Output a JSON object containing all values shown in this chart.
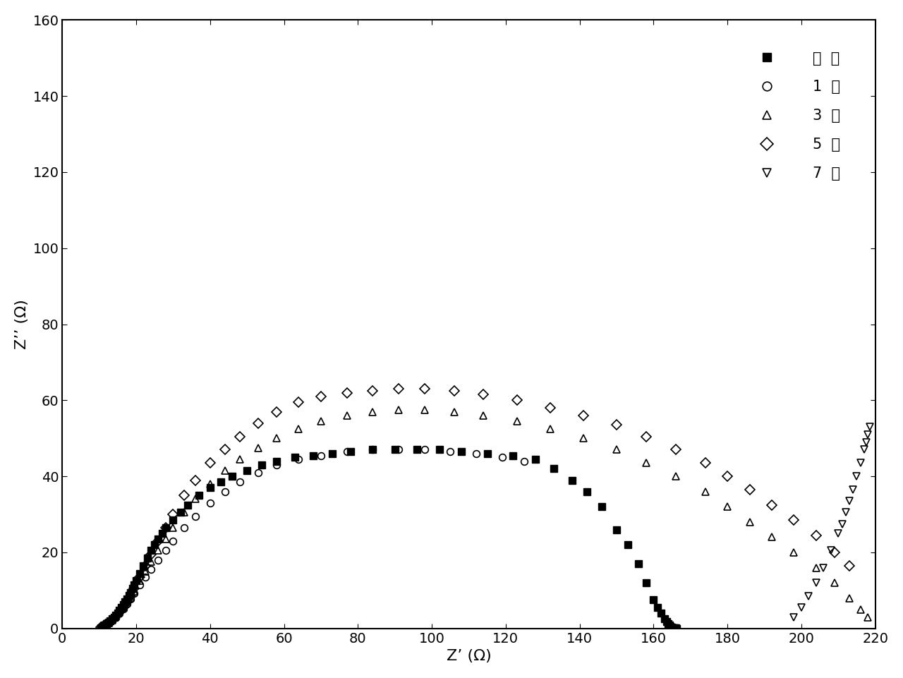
{
  "xlabel": "Z’ (Ω)",
  "ylabel": "Z’’ (Ω)",
  "xlim": [
    0,
    220
  ],
  "ylim": [
    0,
    160
  ],
  "xticks": [
    0,
    20,
    40,
    60,
    80,
    100,
    120,
    140,
    160,
    180,
    200,
    220
  ],
  "yticks": [
    0,
    20,
    40,
    60,
    80,
    100,
    120,
    140,
    160
  ],
  "legend_labels": [
    "起  始",
    "1  天",
    "3  天",
    "5  天",
    "7  天"
  ],
  "series_0": {
    "label": "起  始",
    "x": [
      10.5,
      11,
      11.5,
      12,
      12.5,
      13,
      13.5,
      14,
      14.5,
      15,
      15.5,
      16,
      16.5,
      17,
      17.5,
      18,
      18.5,
      19,
      19.5,
      20,
      21,
      22,
      23,
      24,
      25,
      26,
      27,
      28,
      30,
      32,
      34,
      37,
      40,
      43,
      46,
      50,
      54,
      58,
      63,
      68,
      73,
      78,
      84,
      90,
      96,
      102,
      108,
      115,
      122,
      128,
      133,
      138,
      142,
      146,
      150,
      153,
      156,
      158,
      160,
      161,
      162,
      163,
      163.5,
      164,
      164.3,
      164.6,
      164.9,
      165.2,
      165.5,
      165.8,
      166,
      166.3
    ],
    "y": [
      0.2,
      0.5,
      0.8,
      1.2,
      1.6,
      2.0,
      2.5,
      3.0,
      3.5,
      4.1,
      4.8,
      5.5,
      6.2,
      7.0,
      7.8,
      8.7,
      9.5,
      10.5,
      11.5,
      12.5,
      14.5,
      16.5,
      18.5,
      20.5,
      22.0,
      23.5,
      25.0,
      26.5,
      28.5,
      30.5,
      32.5,
      35.0,
      37.0,
      38.5,
      40.0,
      41.5,
      43.0,
      44.0,
      45.0,
      45.5,
      46.0,
      46.5,
      47.0,
      47.0,
      47.0,
      47.0,
      46.5,
      46.0,
      45.5,
      44.5,
      42.0,
      39.0,
      36.0,
      32.0,
      26.0,
      22.0,
      17.0,
      12.0,
      7.5,
      5.5,
      4.0,
      2.5,
      1.8,
      1.2,
      0.8,
      0.5,
      0.3,
      0.2,
      0.15,
      0.1,
      0.05,
      0.02
    ]
  },
  "series_1": {
    "label": "1  天",
    "x": [
      10.5,
      11.5,
      12.5,
      13.5,
      14.5,
      15.5,
      16.5,
      17.5,
      18.5,
      19.5,
      21,
      22.5,
      24,
      26,
      28,
      30,
      33,
      36,
      40,
      44,
      48,
      53,
      58,
      64,
      70,
      77,
      84,
      91,
      98,
      105,
      112,
      119,
      125
    ],
    "y": [
      0.3,
      0.8,
      1.5,
      2.2,
      3.0,
      4.0,
      5.2,
      6.4,
      7.8,
      9.2,
      11.5,
      13.5,
      15.5,
      18.0,
      20.5,
      23.0,
      26.5,
      29.5,
      33.0,
      36.0,
      38.5,
      41.0,
      43.0,
      44.5,
      45.5,
      46.5,
      47.0,
      47.0,
      47.0,
      46.5,
      46.0,
      45.0,
      44.0
    ]
  },
  "series_2": {
    "label": "3  天",
    "x": [
      10.5,
      11.5,
      12.5,
      13.5,
      14.5,
      15.5,
      16.5,
      17.5,
      18.5,
      19.5,
      21,
      22.5,
      24,
      26,
      28,
      30,
      33,
      36,
      40,
      44,
      48,
      53,
      58,
      64,
      70,
      77,
      84,
      91,
      98,
      106,
      114,
      123,
      132,
      141,
      150,
      158,
      166,
      174,
      180,
      186,
      192,
      198,
      204,
      209,
      213,
      216,
      218
    ],
    "y": [
      0.3,
      0.8,
      1.5,
      2.2,
      3.2,
      4.3,
      5.5,
      6.8,
      8.2,
      9.8,
      12.5,
      15.0,
      17.5,
      20.5,
      23.5,
      26.5,
      30.5,
      34.0,
      38.0,
      41.5,
      44.5,
      47.5,
      50.0,
      52.5,
      54.5,
      56.0,
      57.0,
      57.5,
      57.5,
      57.0,
      56.0,
      54.5,
      52.5,
      50.0,
      47.0,
      43.5,
      40.0,
      36.0,
      32.0,
      28.0,
      24.0,
      20.0,
      16.0,
      12.0,
      8.0,
      5.0,
      3.0
    ]
  },
  "series_3": {
    "label": "5  天",
    "x": [
      10.5,
      11.5,
      12.5,
      13.5,
      14.5,
      15.5,
      16.5,
      17.5,
      18.5,
      19.5,
      21,
      22.5,
      24,
      26,
      28,
      30,
      33,
      36,
      40,
      44,
      48,
      53,
      58,
      64,
      70,
      77,
      84,
      91,
      98,
      106,
      114,
      123,
      132,
      141,
      150,
      158,
      166,
      174,
      180,
      186,
      192,
      198,
      204,
      209,
      213
    ],
    "y": [
      0.3,
      0.8,
      1.5,
      2.2,
      3.2,
      4.3,
      5.5,
      7.0,
      8.5,
      10.5,
      13.5,
      16.5,
      19.5,
      23.0,
      26.5,
      30.0,
      35.0,
      39.0,
      43.5,
      47.0,
      50.5,
      54.0,
      57.0,
      59.5,
      61.0,
      62.0,
      62.5,
      63.0,
      63.0,
      62.5,
      61.5,
      60.0,
      58.0,
      56.0,
      53.5,
      50.5,
      47.0,
      43.5,
      40.0,
      36.5,
      32.5,
      28.5,
      24.5,
      20.0,
      16.5
    ]
  },
  "series_4": {
    "label": "7  天",
    "x": [
      198,
      200,
      202,
      204,
      206,
      208,
      210,
      211,
      212,
      213,
      214,
      215,
      216,
      217,
      217.5,
      218,
      218.5
    ],
    "y": [
      3.0,
      5.5,
      8.5,
      12.0,
      16.0,
      20.5,
      25.0,
      27.5,
      30.5,
      33.5,
      36.5,
      40.0,
      43.5,
      47.0,
      49.0,
      51.0,
      53.0
    ]
  },
  "background_color": "#ffffff",
  "tick_fontsize": 14,
  "label_fontsize": 16,
  "legend_fontsize": 15,
  "marker_size": 7
}
